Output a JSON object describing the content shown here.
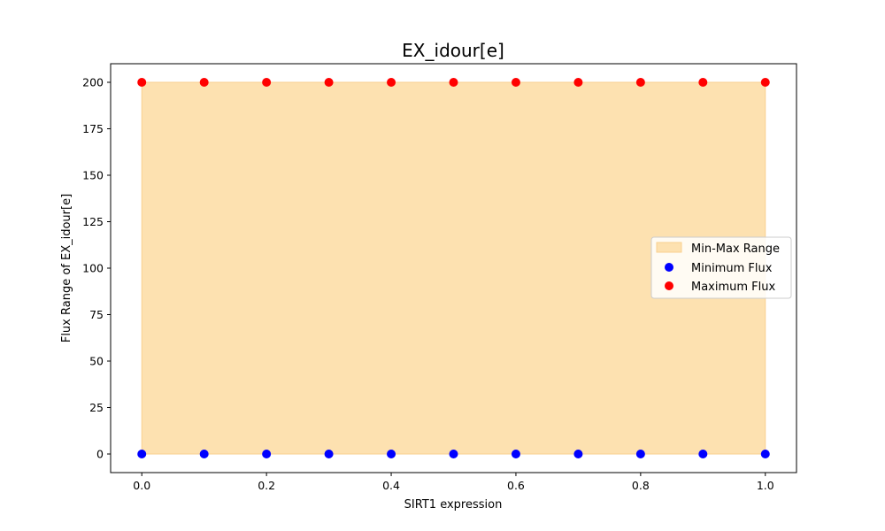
{
  "chart_data": {
    "type": "scatter",
    "title": "EX_idour[e]",
    "xlabel": "SIRT1 expression",
    "ylabel": "Flux Range of EX_idour[e]",
    "xlim": [
      -0.05,
      1.05
    ],
    "ylim": [
      -10,
      210
    ],
    "xticks": [
      0.0,
      0.2,
      0.4,
      0.6,
      0.8,
      1.0
    ],
    "xtick_labels": [
      "0.0",
      "0.2",
      "0.4",
      "0.6",
      "0.8",
      "1.0"
    ],
    "yticks": [
      0,
      25,
      50,
      75,
      100,
      125,
      150,
      175,
      200
    ],
    "ytick_labels": [
      "0",
      "25",
      "50",
      "75",
      "100",
      "125",
      "150",
      "175",
      "200"
    ],
    "x": [
      0.0,
      0.1,
      0.2,
      0.3,
      0.4,
      0.5,
      0.6,
      0.7,
      0.8,
      0.9,
      1.0
    ],
    "series": [
      {
        "name": "Minimum Flux",
        "kind": "scatter",
        "color": "#0000ff",
        "values": [
          0,
          0,
          0,
          0,
          0,
          0,
          0,
          0,
          0,
          0,
          0
        ]
      },
      {
        "name": "Maximum Flux",
        "kind": "scatter",
        "color": "#ff0000",
        "values": [
          200,
          200,
          200,
          200,
          200,
          200,
          200,
          200,
          200,
          200,
          200
        ]
      }
    ],
    "fill": {
      "name": "Min-Max Range",
      "color": "#fde1b0",
      "edge_color": "#f9d08f",
      "lower": "Minimum Flux",
      "upper": "Maximum Flux"
    },
    "grid": false,
    "legend_position": "center-right"
  }
}
